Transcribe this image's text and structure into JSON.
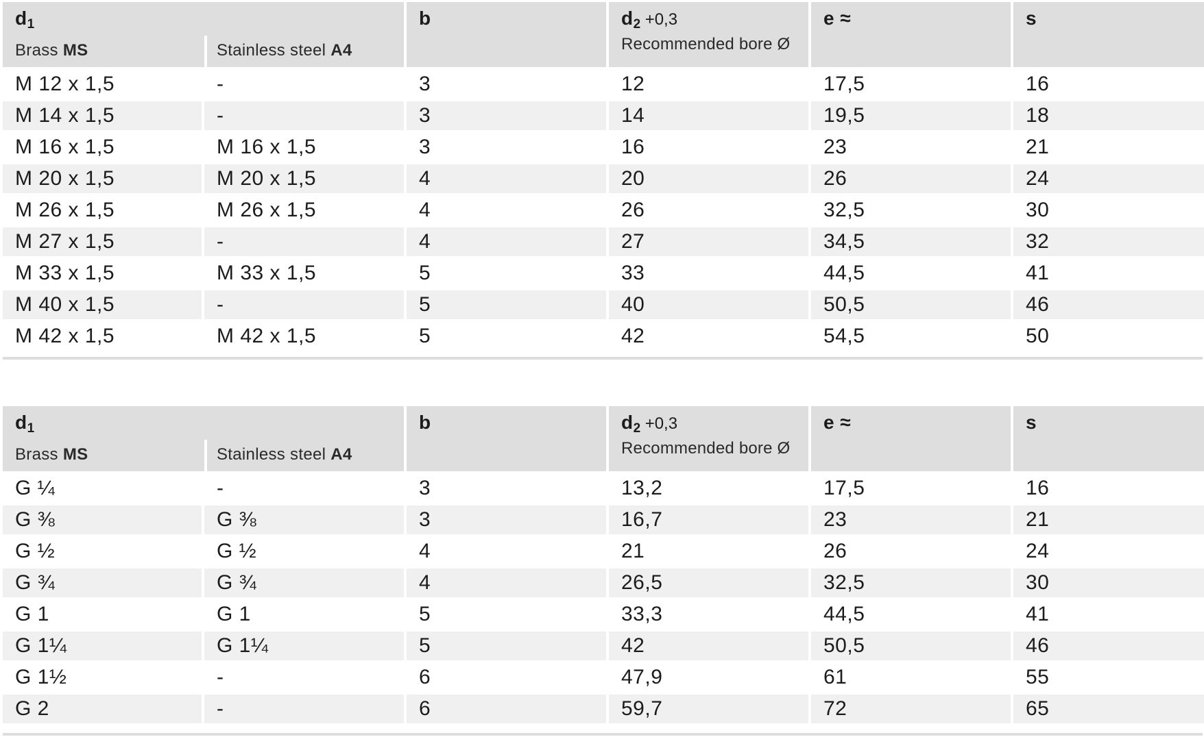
{
  "header": {
    "d1": "d",
    "d1_sub": "1",
    "brass_label": "Brass",
    "brass_code": "MS",
    "steel_label": "Stainless steel",
    "steel_code": "A4",
    "b": "b",
    "d2": "d",
    "d2_sub": "2",
    "d2_tol": "+0,3",
    "d2_note": "Recommended bore Ø",
    "e": "e ≈",
    "s": "s"
  },
  "table1": [
    [
      "M 12 x 1,5",
      "-",
      "3",
      "12",
      "17,5",
      "16"
    ],
    [
      "M 14 x 1,5",
      "-",
      "3",
      "14",
      "19,5",
      "18"
    ],
    [
      "M 16 x 1,5",
      "M 16 x 1,5",
      "3",
      "16",
      "23",
      "21"
    ],
    [
      "M 20 x 1,5",
      "M 20 x 1,5",
      "4",
      "20",
      "26",
      "24"
    ],
    [
      "M 26 x 1,5",
      "M 26 x 1,5",
      "4",
      "26",
      "32,5",
      "30"
    ],
    [
      "M 27 x 1,5",
      "-",
      "4",
      "27",
      "34,5",
      "32"
    ],
    [
      "M 33 x 1,5",
      "M 33 x 1,5",
      "5",
      "33",
      "44,5",
      "41"
    ],
    [
      "M 40 x 1,5",
      "-",
      "5",
      "40",
      "50,5",
      "46"
    ],
    [
      "M 42 x 1,5",
      "M 42 x 1,5",
      "5",
      "42",
      "54,5",
      "50"
    ]
  ],
  "table2": [
    [
      "G ¼",
      "-",
      "3",
      "13,2",
      "17,5",
      "16"
    ],
    [
      "G ⅜",
      "G ⅜",
      "3",
      "16,7",
      "23",
      "21"
    ],
    [
      "G ½",
      "G ½",
      "4",
      "21",
      "26",
      "24"
    ],
    [
      "G ¾",
      "G ¾",
      "4",
      "26,5",
      "32,5",
      "30"
    ],
    [
      "G 1",
      "G 1",
      "5",
      "33,3",
      "44,5",
      "41"
    ],
    [
      "G 1¼",
      "G 1¼",
      "5",
      "42",
      "50,5",
      "46"
    ],
    [
      "G 1½",
      "-",
      "6",
      "47,9",
      "61",
      "55"
    ],
    [
      "G 2",
      "-",
      "6",
      "59,7",
      "72",
      "65"
    ]
  ]
}
